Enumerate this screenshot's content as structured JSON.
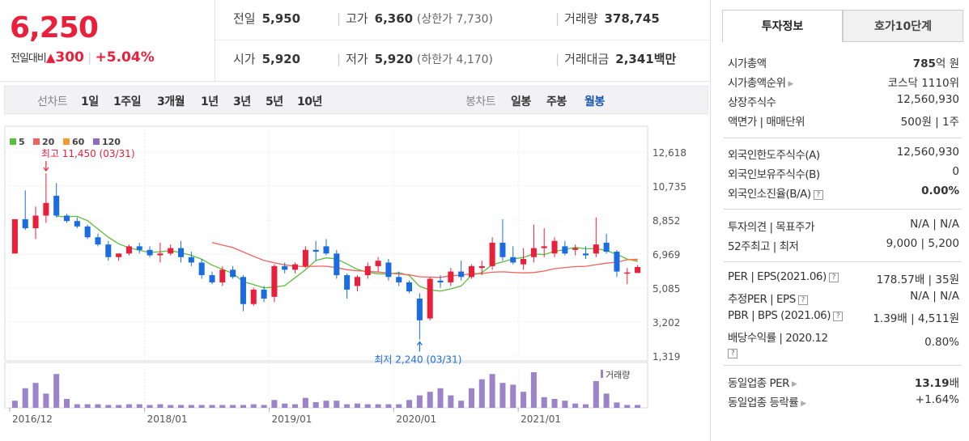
{
  "quote": {
    "price": "6,250",
    "change_label": "전일대비",
    "change_arrow": "▲",
    "change_value": "300",
    "change_pct": "+5.04%",
    "prev_close_label": "전일",
    "prev_close": "5,950",
    "high_label": "고가",
    "high": "6,360",
    "upper_limit": "(상한가 7,730)",
    "volume_label": "거래량",
    "volume": "378,745",
    "open_label": "시가",
    "open": "5,920",
    "low_label": "저가",
    "low": "5,920",
    "lower_limit": "(하한가 4,170)",
    "value_label": "거래대금",
    "value": "2,341",
    "value_unit": "백만"
  },
  "period_bar": {
    "line_label": "선차트",
    "line_periods": [
      "1일",
      "1주일",
      "3개월",
      "1년",
      "3년",
      "5년",
      "10년"
    ],
    "candle_label": "봉차트",
    "candle_periods": [
      "일봉",
      "주봉",
      "월봉"
    ],
    "active_candle": "월봉"
  },
  "colors": {
    "up": "#e8203c",
    "down": "#1a6ce0",
    "ma5": "#5bbf3c",
    "ma20": "#f0625d",
    "ma60": "#f39a2b",
    "ma120": "#8e6cc6",
    "volume_bar": "#9b84c9"
  },
  "chart_data": {
    "type": "candlestick",
    "interval": "monthly",
    "legend": [
      "5",
      "20",
      "60",
      "120"
    ],
    "y_ticks": [
      "12,618",
      "10,735",
      "8,852",
      "6,969",
      "5,085",
      "3,202",
      "1,319"
    ],
    "ylim": [
      1319,
      12618
    ],
    "x_ticks": [
      {
        "label": "2016/12",
        "index": 0
      },
      {
        "label": "2018/01",
        "index": 13
      },
      {
        "label": "2019/01",
        "index": 25
      },
      {
        "label": "2020/01",
        "index": 37
      },
      {
        "label": "2021/01",
        "index": 49
      }
    ],
    "high_annotation": {
      "text": "최고 11,450 (03/31)",
      "index": 3,
      "value": 11450
    },
    "low_annotation": {
      "text": "최저 2,240 (03/31)",
      "index": 39,
      "value": 2240
    },
    "volume_label": "거래량",
    "candles": [
      {
        "o": 7000,
        "h": 8900,
        "l": 7000,
        "c": 8900,
        "v": 0.2
      },
      {
        "o": 8900,
        "h": 10500,
        "l": 8300,
        "c": 8400,
        "v": 0.55
      },
      {
        "o": 8400,
        "h": 9600,
        "l": 7800,
        "c": 9100,
        "v": 0.7
      },
      {
        "o": 9100,
        "h": 11450,
        "l": 8700,
        "c": 9800,
        "v": 0.4
      },
      {
        "o": 10200,
        "h": 10900,
        "l": 9000,
        "c": 9100,
        "v": 0.95
      },
      {
        "o": 9100,
        "h": 9200,
        "l": 8700,
        "c": 8800,
        "v": 0.25
      },
      {
        "o": 8800,
        "h": 9000,
        "l": 8400,
        "c": 8500,
        "v": 0.1
      },
      {
        "o": 8500,
        "h": 8600,
        "l": 7800,
        "c": 7900,
        "v": 0.1
      },
      {
        "o": 7900,
        "h": 8100,
        "l": 7400,
        "c": 7500,
        "v": 0.1
      },
      {
        "o": 7500,
        "h": 7700,
        "l": 6600,
        "c": 6800,
        "v": 0.08
      },
      {
        "o": 6800,
        "h": 7000,
        "l": 6600,
        "c": 7000,
        "v": 0.08
      },
      {
        "o": 7000,
        "h": 7500,
        "l": 6900,
        "c": 7400,
        "v": 0.1
      },
      {
        "o": 7400,
        "h": 7600,
        "l": 7000,
        "c": 7200,
        "v": 0.1
      },
      {
        "o": 7200,
        "h": 7400,
        "l": 6800,
        "c": 6900,
        "v": 0.08
      },
      {
        "o": 6900,
        "h": 7600,
        "l": 6500,
        "c": 7000,
        "v": 0.1
      },
      {
        "o": 7000,
        "h": 7500,
        "l": 6900,
        "c": 7300,
        "v": 0.08
      },
      {
        "o": 7300,
        "h": 7700,
        "l": 6500,
        "c": 6800,
        "v": 0.08
      },
      {
        "o": 6800,
        "h": 7100,
        "l": 6300,
        "c": 6500,
        "v": 0.08
      },
      {
        "o": 6500,
        "h": 6700,
        "l": 5600,
        "c": 5800,
        "v": 0.08
      },
      {
        "o": 5800,
        "h": 6000,
        "l": 5300,
        "c": 5400,
        "v": 0.08
      },
      {
        "o": 5400,
        "h": 6300,
        "l": 5200,
        "c": 6100,
        "v": 0.08
      },
      {
        "o": 6100,
        "h": 6300,
        "l": 5600,
        "c": 5700,
        "v": 0.08
      },
      {
        "o": 5700,
        "h": 5800,
        "l": 3800,
        "c": 4200,
        "v": 0.08
      },
      {
        "o": 4200,
        "h": 5100,
        "l": 4100,
        "c": 5000,
        "v": 0.1
      },
      {
        "o": 5000,
        "h": 5200,
        "l": 4300,
        "c": 4500,
        "v": 0.08
      },
      {
        "o": 4600,
        "h": 6400,
        "l": 4300,
        "c": 6300,
        "v": 0.22
      },
      {
        "o": 6300,
        "h": 6500,
        "l": 5900,
        "c": 6100,
        "v": 0.12
      },
      {
        "o": 6100,
        "h": 6500,
        "l": 5900,
        "c": 6400,
        "v": 0.1
      },
      {
        "o": 6300,
        "h": 7400,
        "l": 6200,
        "c": 7200,
        "v": 0.28
      },
      {
        "o": 7200,
        "h": 7700,
        "l": 6600,
        "c": 7100,
        "v": 0.16
      },
      {
        "o": 7400,
        "h": 7800,
        "l": 6900,
        "c": 7000,
        "v": 0.2
      },
      {
        "o": 7000,
        "h": 7200,
        "l": 5600,
        "c": 5800,
        "v": 0.2
      },
      {
        "o": 5800,
        "h": 5900,
        "l": 4500,
        "c": 5000,
        "v": 0.1
      },
      {
        "o": 5200,
        "h": 5800,
        "l": 4900,
        "c": 5700,
        "v": 0.12
      },
      {
        "o": 5800,
        "h": 6500,
        "l": 5600,
        "c": 6300,
        "v": 0.1
      },
      {
        "o": 6300,
        "h": 6800,
        "l": 6000,
        "c": 6600,
        "v": 0.1
      },
      {
        "o": 6500,
        "h": 6700,
        "l": 5500,
        "c": 5700,
        "v": 0.1
      },
      {
        "o": 5700,
        "h": 6000,
        "l": 5200,
        "c": 5400,
        "v": 0.1
      },
      {
        "o": 5400,
        "h": 5500,
        "l": 4800,
        "c": 4900,
        "v": 0.22
      },
      {
        "o": 4500,
        "h": 4800,
        "l": 2240,
        "c": 3300,
        "v": 0.35
      },
      {
        "o": 3400,
        "h": 5700,
        "l": 3300,
        "c": 5600,
        "v": 0.45
      },
      {
        "o": 5500,
        "h": 5800,
        "l": 5100,
        "c": 5400,
        "v": 0.55
      },
      {
        "o": 5400,
        "h": 6200,
        "l": 5200,
        "c": 6000,
        "v": 0.35
      },
      {
        "o": 6000,
        "h": 6600,
        "l": 5500,
        "c": 5700,
        "v": 0.2
      },
      {
        "o": 5700,
        "h": 6400,
        "l": 5600,
        "c": 6300,
        "v": 0.55
      },
      {
        "o": 6200,
        "h": 6600,
        "l": 5800,
        "c": 6300,
        "v": 0.8
      },
      {
        "o": 6300,
        "h": 7900,
        "l": 6100,
        "c": 7600,
        "v": 0.95
      },
      {
        "o": 7600,
        "h": 8900,
        "l": 6600,
        "c": 6800,
        "v": 0.7
      },
      {
        "o": 6800,
        "h": 7400,
        "l": 6400,
        "c": 6500,
        "v": 0.65
      },
      {
        "o": 6400,
        "h": 7300,
        "l": 6100,
        "c": 6700,
        "v": 0.45
      },
      {
        "o": 6800,
        "h": 8600,
        "l": 6500,
        "c": 7300,
        "v": 1.0
      },
      {
        "o": 7300,
        "h": 8400,
        "l": 6800,
        "c": 7400,
        "v": 0.3
      },
      {
        "o": 7000,
        "h": 7900,
        "l": 6800,
        "c": 7700,
        "v": 0.25
      },
      {
        "o": 7400,
        "h": 7700,
        "l": 6900,
        "c": 7000,
        "v": 0.2
      },
      {
        "o": 7200,
        "h": 7500,
        "l": 6900,
        "c": 7300,
        "v": 0.12
      },
      {
        "o": 7000,
        "h": 7400,
        "l": 6700,
        "c": 6900,
        "v": 0.1
      },
      {
        "o": 7000,
        "h": 9000,
        "l": 6800,
        "c": 7500,
        "v": 0.75
      },
      {
        "o": 7600,
        "h": 8100,
        "l": 7000,
        "c": 7100,
        "v": 0.4
      },
      {
        "o": 7100,
        "h": 7200,
        "l": 5700,
        "c": 6000,
        "v": 0.15
      },
      {
        "o": 5900,
        "h": 6200,
        "l": 5300,
        "c": 5950,
        "v": 0.08
      },
      {
        "o": 5920,
        "h": 6360,
        "l": 5920,
        "c": 6250,
        "v": 0.08
      }
    ]
  },
  "invest_info": {
    "tab_active": "투자정보",
    "tab_other": "호가10단계",
    "market_cap_label": "시가총액",
    "market_cap_value": "785",
    "market_cap_unit": "억 원",
    "market_rank_label": "시가총액순위",
    "market_rank_value": "코스닥 1110위",
    "listed_shares_label": "상장주식수",
    "listed_shares_value": "12,560,930",
    "face_label": "액면가 | 매매단위",
    "face_value": "500원 | 1주",
    "foreign_limit_label": "외국인한도주식수(A)",
    "foreign_limit_value": "12,560,930",
    "foreign_hold_label": "외국인보유주식수(B)",
    "foreign_hold_value": "0",
    "foreign_ratio_label": "외국인소진율(B/A)",
    "foreign_ratio_value": "0.00%",
    "opinion_label": "투자의견 | 목표주가",
    "opinion_value": "N/A | N/A",
    "week52_label": "52주최고 | 최저",
    "week52_value": "9,000 | 5,200",
    "per_label": "PER | EPS(2021.06)",
    "per_value": "178.57배 | 35원",
    "est_per_label": "추정PER | EPS",
    "est_per_value": "N/A | N/A",
    "pbr_label": "PBR | BPS (2021.06)",
    "pbr_value": "1.39배 | 4,511원",
    "dividend_label": "배당수익률 | 2020.12",
    "dividend_value": "0.80%",
    "industry_per_label": "동일업종 PER",
    "industry_per_value": "13.19",
    "industry_per_unit": "배",
    "industry_change_label": "동일업종 등락률",
    "industry_change_value": "+1.64%"
  }
}
